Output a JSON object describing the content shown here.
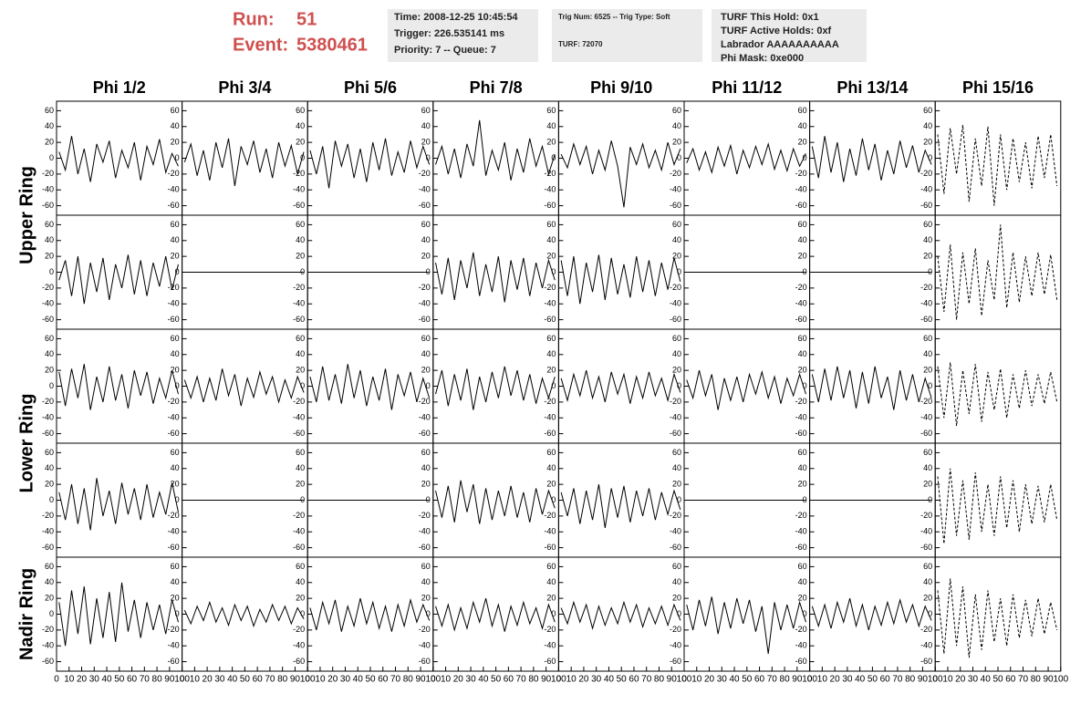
{
  "header": {
    "run_label": "Run:",
    "run": 51,
    "event_label": "Event:",
    "event": 5380461,
    "boxes": [
      [
        "Time: 2008-12-25 10:45:54",
        "Trigger: 226.535141 ms",
        "Priority: 7 -- Queue: 7"
      ],
      [
        "Trig Num: 6525 -- Trig Type: Soft",
        "TURF: 72070"
      ],
      [
        "TURF This Hold: 0x1",
        "TURF Active Holds: 0xf",
        "Labrador AAAAAAAAAA",
        "Phi Mask: 0xe000"
      ]
    ]
  },
  "chart_data": {
    "type": "line",
    "columns": [
      {
        "label": "Phi 1/2"
      },
      {
        "label": "Phi 3/4"
      },
      {
        "label": "Phi 5/6"
      },
      {
        "label": "Phi 7/8"
      },
      {
        "label": "Phi 9/10"
      },
      {
        "label": "Phi 11/12"
      },
      {
        "label": "Phi 13/14"
      },
      {
        "label": "Phi 15/16",
        "linestyle": "dashed"
      }
    ],
    "x": [
      2,
      7,
      12,
      17,
      22,
      27,
      32,
      37,
      42,
      47,
      52,
      57,
      62,
      67,
      72,
      77,
      82,
      87,
      92,
      97
    ],
    "xlim": [
      0,
      100
    ],
    "xticks": [
      0,
      10,
      20,
      30,
      40,
      50,
      60,
      70,
      80,
      90,
      100
    ],
    "ylim": [
      -72,
      72
    ],
    "yticks": [
      -60,
      -40,
      -20,
      0,
      20,
      40,
      60
    ],
    "rings": [
      {
        "label": "Upper Ring",
        "panels": [
          [
            [
              8,
              -15,
              28,
              -20,
              12,
              -30,
              18,
              -5,
              22,
              -25,
              10,
              -12,
              20,
              -28,
              15,
              -8,
              24,
              -18,
              6,
              -10
            ],
            [
              -5,
              18,
              -22,
              10,
              -28,
              20,
              -12,
              25,
              -35,
              15,
              -8,
              22,
              -18,
              12,
              -25,
              20,
              -10,
              16,
              -20,
              8
            ],
            [
              10,
              -20,
              15,
              -38,
              22,
              -10,
              18,
              -25,
              12,
              -30,
              20,
              -15,
              25,
              -22,
              8,
              -18,
              22,
              -12,
              15,
              -8
            ],
            [
              -8,
              15,
              -20,
              12,
              -25,
              18,
              -10,
              48,
              -22,
              10,
              -15,
              20,
              -28,
              12,
              -18,
              25,
              -10,
              15,
              -20,
              5
            ],
            [
              5,
              -12,
              18,
              -8,
              15,
              -20,
              10,
              -15,
              22,
              -10,
              -62,
              14,
              -8,
              18,
              -12,
              10,
              -15,
              20,
              -8,
              12
            ],
            [
              -6,
              12,
              -15,
              8,
              -18,
              14,
              -10,
              16,
              -20,
              10,
              -12,
              15,
              -8,
              18,
              -14,
              10,
              -16,
              12,
              -10,
              6
            ],
            [
              15,
              -25,
              28,
              -18,
              20,
              -30,
              12,
              -22,
              25,
              -15,
              18,
              -28,
              10,
              -20,
              22,
              -12,
              16,
              -18,
              10,
              -8
            ],
            [
              30,
              -45,
              38,
              -20,
              42,
              -55,
              25,
              -35,
              40,
              -60,
              30,
              -40,
              25,
              -30,
              20,
              -38,
              28,
              -25,
              30,
              -35
            ]
          ],
          [
            [
              -10,
              15,
              -30,
              20,
              -40,
              12,
              -25,
              18,
              -35,
              10,
              -20,
              22,
              -28,
              15,
              -30,
              12,
              -18,
              20,
              -22,
              10
            ],
            [
              0,
              0,
              0,
              0,
              0,
              0,
              0,
              0,
              0,
              0,
              0,
              0,
              0,
              0,
              0,
              0,
              0,
              0,
              0,
              0
            ],
            [
              0,
              0,
              0,
              0,
              0,
              0,
              0,
              0,
              0,
              0,
              0,
              0,
              0,
              0,
              0,
              0,
              0,
              0,
              0,
              0
            ],
            [
              12,
              -28,
              18,
              -35,
              15,
              -20,
              25,
              -30,
              10,
              -25,
              20,
              -38,
              15,
              -22,
              18,
              -30,
              12,
              -20,
              15,
              -10
            ],
            [
              15,
              -30,
              20,
              -40,
              12,
              -25,
              22,
              -35,
              18,
              -28,
              10,
              -32,
              20,
              -25,
              15,
              -30,
              12,
              -22,
              18,
              -12
            ],
            [
              0,
              0,
              0,
              0,
              0,
              0,
              0,
              0,
              0,
              0,
              0,
              0,
              0,
              0,
              0,
              0,
              0,
              0,
              0,
              0
            ],
            [
              0,
              0,
              0,
              0,
              0,
              0,
              0,
              0,
              0,
              0,
              0,
              0,
              0,
              0,
              0,
              0,
              0,
              0,
              0,
              0
            ],
            [
              20,
              -50,
              35,
              -60,
              25,
              -40,
              30,
              -55,
              15,
              -35,
              60,
              -45,
              25,
              -38,
              20,
              -30,
              25,
              -28,
              22,
              -35
            ]
          ]
        ]
      },
      {
        "label": "Lower Ring",
        "panels": [
          [
            [
              18,
              -25,
              22,
              -15,
              28,
              -30,
              12,
              -20,
              25,
              -18,
              15,
              -28,
              20,
              -12,
              18,
              -22,
              10,
              -15,
              20,
              -10
            ],
            [
              8,
              -15,
              12,
              -20,
              10,
              -18,
              22,
              -12,
              15,
              -25,
              10,
              -14,
              18,
              -10,
              12,
              -20,
              8,
              -15,
              12,
              -8
            ],
            [
              12,
              -20,
              25,
              -18,
              15,
              -22,
              28,
              -15,
              20,
              -25,
              12,
              -18,
              22,
              -30,
              15,
              -12,
              18,
              -20,
              10,
              -15
            ],
            [
              -10,
              20,
              -25,
              15,
              -18,
              22,
              -30,
              12,
              -20,
              18,
              -15,
              25,
              -12,
              20,
              -18,
              15,
              -22,
              10,
              -15,
              12
            ],
            [
              10,
              -18,
              15,
              -12,
              20,
              -15,
              12,
              -20,
              18,
              -10,
              15,
              -22,
              12,
              -15,
              18,
              -12,
              10,
              -18,
              15,
              -8
            ],
            [
              8,
              -15,
              20,
              -12,
              15,
              -30,
              10,
              -18,
              12,
              -20,
              15,
              -10,
              18,
              -15,
              12,
              -22,
              10,
              -12,
              15,
              -10
            ],
            [
              15,
              -20,
              22,
              -18,
              25,
              -15,
              20,
              -28,
              18,
              -22,
              25,
              -15,
              12,
              -30,
              20,
              -18,
              15,
              -20,
              10,
              -15
            ],
            [
              25,
              -40,
              30,
              -50,
              20,
              -35,
              28,
              -45,
              18,
              -30,
              22,
              -40,
              15,
              -28,
              20,
              -25,
              15,
              -22,
              18,
              -20
            ]
          ],
          [
            [
              10,
              -25,
              20,
              -30,
              15,
              -38,
              28,
              -20,
              12,
              -30,
              22,
              -18,
              15,
              -25,
              20,
              -22,
              10,
              -18,
              22,
              -15
            ],
            [
              0,
              0,
              0,
              0,
              0,
              0,
              0,
              0,
              0,
              0,
              0,
              0,
              0,
              0,
              0,
              0,
              0,
              0,
              0,
              0
            ],
            [
              0,
              0,
              0,
              0,
              0,
              0,
              0,
              0,
              0,
              0,
              0,
              0,
              0,
              0,
              0,
              0,
              0,
              0,
              0,
              0
            ],
            [
              12,
              -22,
              18,
              -28,
              25,
              -15,
              20,
              -30,
              15,
              -25,
              12,
              -20,
              18,
              -22,
              10,
              -28,
              15,
              -18,
              12,
              -10
            ],
            [
              10,
              -20,
              15,
              -30,
              12,
              -25,
              20,
              -35,
              15,
              -22,
              18,
              -28,
              12,
              -20,
              15,
              -25,
              10,
              -18,
              12,
              -12
            ],
            [
              0,
              0,
              0,
              0,
              0,
              0,
              0,
              0,
              0,
              0,
              0,
              0,
              0,
              0,
              0,
              0,
              0,
              0,
              0,
              0
            ],
            [
              0,
              0,
              0,
              0,
              0,
              0,
              0,
              0,
              0,
              0,
              0,
              0,
              0,
              0,
              0,
              0,
              0,
              0,
              0,
              0
            ],
            [
              30,
              -55,
              40,
              -45,
              25,
              -50,
              35,
              -40,
              20,
              -45,
              30,
              -35,
              25,
              -40,
              20,
              -30,
              18,
              -28,
              20,
              -25
            ]
          ]
        ]
      },
      {
        "label": "Nadir Ring",
        "panels": [
          [
            [
              15,
              -40,
              30,
              -25,
              35,
              -38,
              20,
              -30,
              28,
              -35,
              40,
              -22,
              18,
              -30,
              15,
              -20,
              12,
              -25,
              18,
              -10
            ],
            [
              5,
              -12,
              10,
              -8,
              15,
              -10,
              8,
              -14,
              12,
              -8,
              10,
              -15,
              6,
              -10,
              12,
              -8,
              10,
              -12,
              8,
              -6
            ],
            [
              8,
              -20,
              15,
              -12,
              18,
              -22,
              10,
              -15,
              20,
              -12,
              15,
              -18,
              10,
              -22,
              12,
              -15,
              18,
              -10,
              12,
              -8
            ],
            [
              10,
              -15,
              12,
              -20,
              8,
              -18,
              15,
              -10,
              20,
              -15,
              12,
              -22,
              10,
              -14,
              15,
              -12,
              8,
              -18,
              12,
              -10
            ],
            [
              8,
              -12,
              15,
              -10,
              12,
              -18,
              10,
              -14,
              8,
              -12,
              15,
              -10,
              12,
              -16,
              8,
              -12,
              10,
              -14,
              12,
              -8
            ],
            [
              12,
              -20,
              18,
              -15,
              22,
              -25,
              15,
              -18,
              20,
              -12,
              18,
              -22,
              10,
              -50,
              15,
              -20,
              12,
              -18,
              15,
              -10
            ],
            [
              10,
              -15,
              12,
              -18,
              15,
              -10,
              20,
              -15,
              12,
              -20,
              10,
              -14,
              15,
              -12,
              18,
              -10,
              12,
              -15,
              10,
              -8
            ],
            [
              30,
              -50,
              45,
              -40,
              35,
              -55,
              25,
              -45,
              30,
              -35,
              20,
              -40,
              25,
              -30,
              18,
              -28,
              20,
              -25,
              15,
              -20
            ]
          ]
        ]
      }
    ]
  }
}
